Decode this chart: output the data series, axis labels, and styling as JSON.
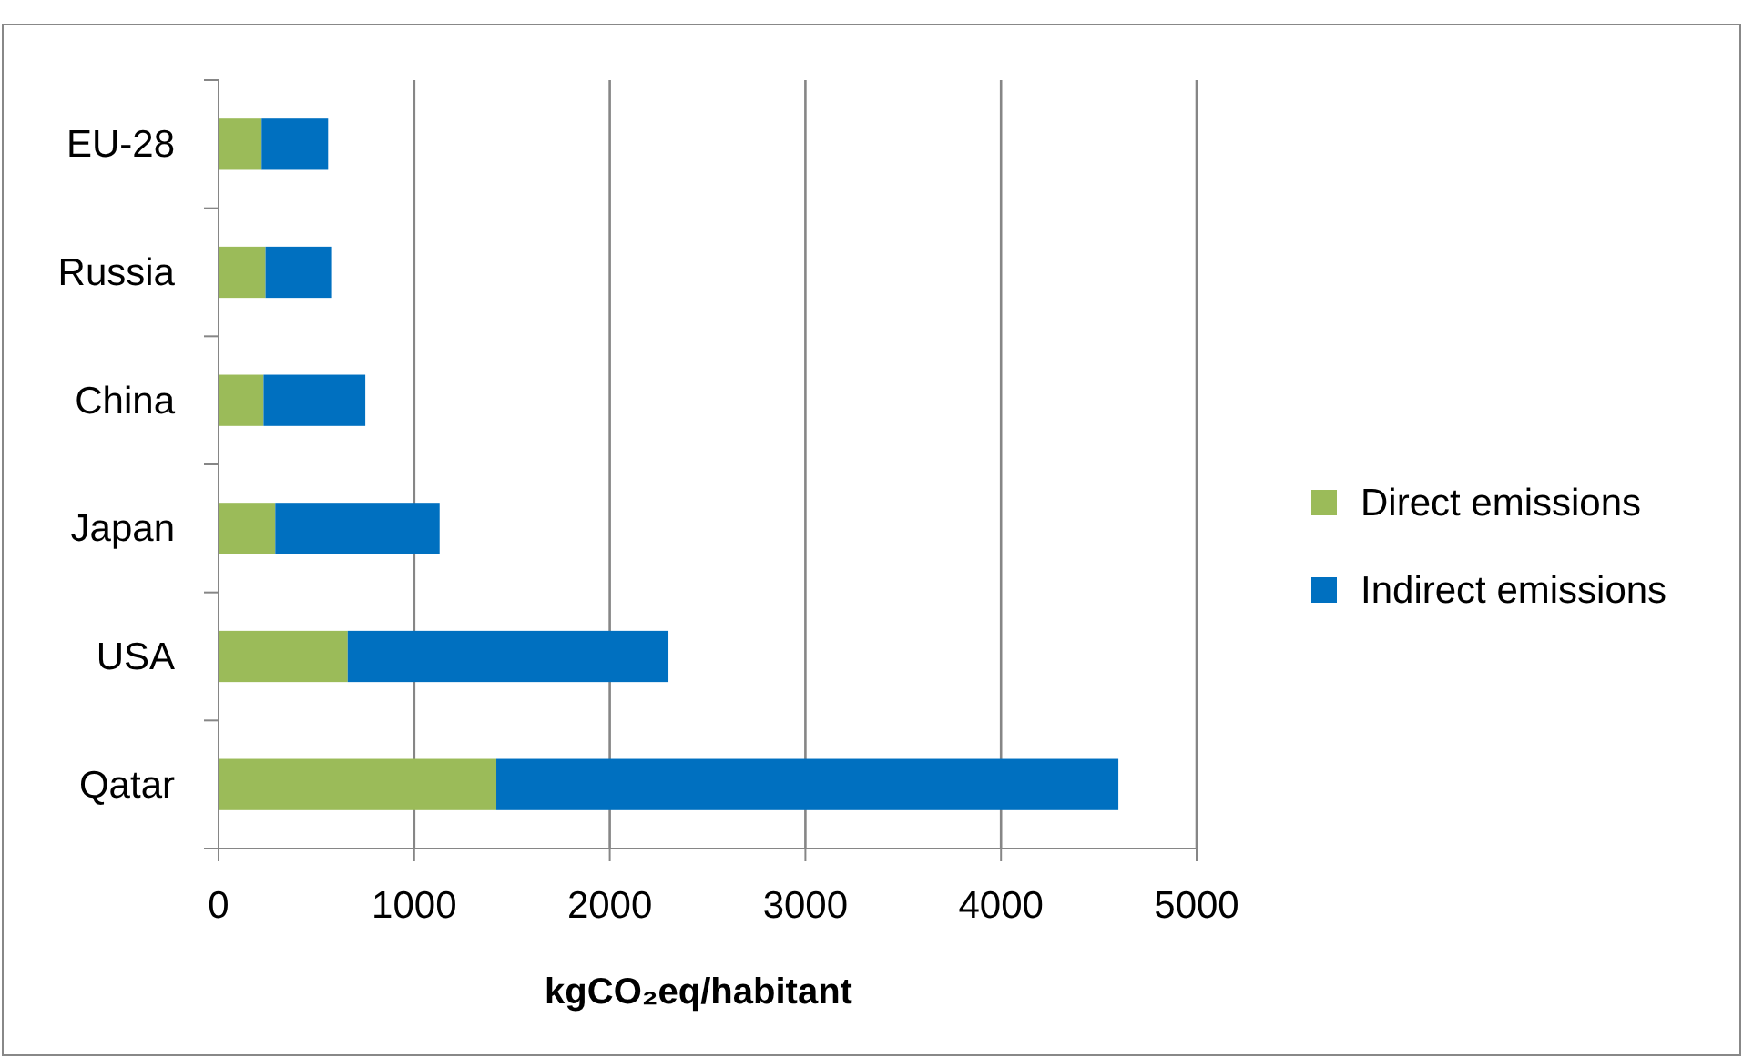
{
  "chart_data": {
    "type": "bar",
    "orientation": "horizontal",
    "stacked": true,
    "xlabel": "kgCO₂eq/habitant",
    "categories": [
      "EU-28",
      "Russia",
      "China",
      "Japan",
      "USA",
      "Qatar"
    ],
    "series": [
      {
        "name": "Direct emissions",
        "color": "#9bbb59",
        "values": [
          220,
          240,
          230,
          290,
          660,
          1420
        ]
      },
      {
        "name": "Indirect emissions",
        "color": "#0070c0",
        "values": [
          340,
          340,
          520,
          840,
          1640,
          3180
        ]
      }
    ],
    "xlim": [
      0,
      5000
    ],
    "xticks": [
      0,
      1000,
      2000,
      3000,
      4000,
      5000
    ],
    "grid": "x",
    "legend": "right"
  }
}
